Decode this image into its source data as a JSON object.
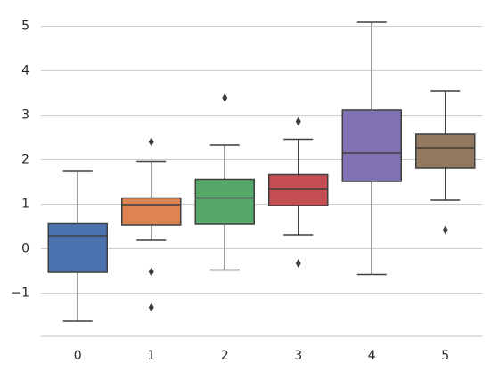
{
  "chart_data": {
    "type": "box",
    "title": "",
    "xlabel": "",
    "ylabel": "",
    "categories": [
      "0",
      "1",
      "2",
      "3",
      "4",
      "5"
    ],
    "y_ticks": [
      {
        "value": -1,
        "label": "−1"
      },
      {
        "value": 0,
        "label": "0"
      },
      {
        "value": 1,
        "label": "1"
      },
      {
        "value": 2,
        "label": "2"
      },
      {
        "value": 3,
        "label": "3"
      },
      {
        "value": 4,
        "label": "4"
      },
      {
        "value": 5,
        "label": "5"
      }
    ],
    "ylim": [
      -1.97,
      5.35
    ],
    "grid": "horizontal",
    "boxes": [
      {
        "category": "0",
        "whisker_low": -1.63,
        "q1": -0.53,
        "median": 0.29,
        "q3": 0.56,
        "whisker_high": 1.75,
        "outliers": [],
        "color": "#4c72b0"
      },
      {
        "category": "1",
        "whisker_low": 0.19,
        "q1": 0.53,
        "median": 0.99,
        "q3": 1.14,
        "whisker_high": 1.96,
        "outliers": [
          2.4,
          -0.52,
          -1.32
        ],
        "color": "#dd8452"
      },
      {
        "category": "2",
        "whisker_low": -0.48,
        "q1": 0.55,
        "median": 1.14,
        "q3": 1.56,
        "whisker_high": 2.33,
        "outliers": [
          3.39
        ],
        "color": "#55a868"
      },
      {
        "category": "3",
        "whisker_low": 0.31,
        "q1": 0.97,
        "median": 1.35,
        "q3": 1.66,
        "whisker_high": 2.46,
        "outliers": [
          2.86,
          -0.33
        ],
        "color": "#c44e52"
      },
      {
        "category": "4",
        "whisker_low": -0.58,
        "q1": 1.51,
        "median": 2.15,
        "q3": 3.11,
        "whisker_high": 5.09,
        "outliers": [],
        "color": "#8172b3"
      },
      {
        "category": "5",
        "whisker_low": 1.09,
        "q1": 1.81,
        "median": 2.27,
        "q3": 2.57,
        "whisker_high": 3.55,
        "outliers": [
          0.42
        ],
        "color": "#937860"
      }
    ]
  }
}
